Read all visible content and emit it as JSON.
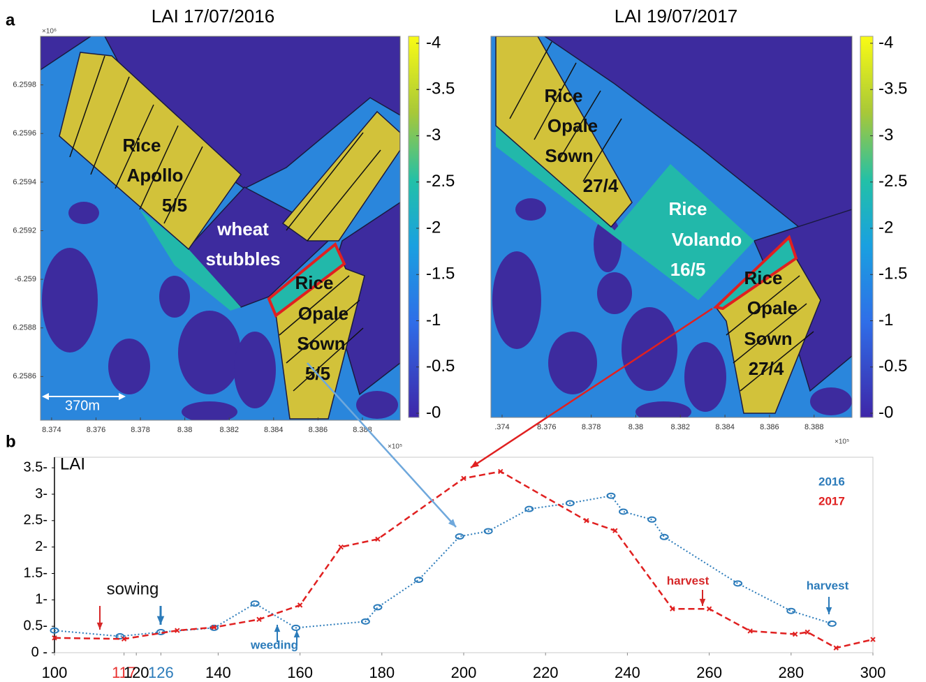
{
  "chart_data": [
    {
      "type": "map",
      "panel_label": "a",
      "title": "LAI 17/07/2016",
      "xlim": [
        8.3735,
        8.3897
      ],
      "xticks": [
        8.374,
        8.376,
        8.378,
        8.38,
        8.382,
        8.384,
        8.386,
        8.388
      ],
      "x_exponent_label": "×10⁵",
      "ylim": [
        6.25842,
        6.26
      ],
      "yticks": [
        6.2598,
        6.2596,
        6.2594,
        6.2592,
        {
          "value": 6.259,
          "label": "-6.259"
        },
        6.2588,
        6.2586
      ],
      "y_exponent_label": "×10⁶",
      "clim": [
        0,
        -4
      ],
      "cticks": [
        -4,
        -3.5,
        -3,
        -2.5,
        -2,
        -1.5,
        -1,
        -0.5,
        {
          "value": 0,
          "label": "-0"
        }
      ],
      "annotations": [
        {
          "lines": [
            "Rice",
            "Apollo",
            "5/5"
          ],
          "color": "#111111"
        },
        {
          "lines": [
            "wheat",
            "stubbles"
          ],
          "color": "#ffffff"
        },
        {
          "lines": [
            "Rice",
            "Opale",
            "Sown",
            "5/5"
          ],
          "color": "#111111"
        }
      ],
      "scale_bar_label": "370m"
    },
    {
      "type": "map",
      "title": "LAI 19/07/2017",
      "xlim": [
        8.3735,
        8.3897
      ],
      "xticks": [
        {
          "value": 8.374,
          "label": ".374"
        },
        8.376,
        8.378,
        8.38,
        8.382,
        8.384,
        8.386,
        8.388
      ],
      "x_exponent_label": "×10⁵",
      "ylim": [
        6.25842,
        6.26
      ],
      "clim": [
        0,
        -4
      ],
      "cticks": [
        -4,
        -3.5,
        -3,
        -2.5,
        -2,
        -1.5,
        -1,
        -0.5,
        {
          "value": 0,
          "label": "-0"
        }
      ],
      "annotations": [
        {
          "lines": [
            "Rice",
            "Opale",
            "Sown",
            "27/4"
          ],
          "color": "#111111"
        },
        {
          "lines": [
            "Rice",
            "Volando",
            "16/5"
          ],
          "color": "#ffffff"
        },
        {
          "lines": [
            "Rice",
            "Opale",
            "Sown",
            "27/4"
          ],
          "color": "#111111"
        }
      ]
    },
    {
      "type": "line",
      "panel_label": "b",
      "ylabel": "LAI",
      "xlim": [
        100,
        300
      ],
      "xticks": [
        100,
        {
          "value": 117,
          "label": "117",
          "color": "#e8312f"
        },
        120,
        {
          "value": 126,
          "label": "126",
          "color": "#2b7bba"
        },
        140,
        160,
        180,
        200,
        220,
        240,
        260,
        280,
        300
      ],
      "ylim": [
        0,
        3.7
      ],
      "yticks": [
        {
          "value": 0,
          "label": "0 -"
        },
        {
          "value": 0.5,
          "label": "0.5-"
        },
        {
          "value": 1,
          "label": "1-"
        },
        {
          "value": 1.5,
          "label": "1.5-"
        },
        {
          "value": 2,
          "label": "2-"
        },
        {
          "value": 2.5,
          "label": "2.5-"
        },
        {
          "value": 3,
          "label": "3-"
        },
        {
          "value": 3.5,
          "label": "3.5-"
        }
      ],
      "series": [
        {
          "name": "2016",
          "color": "#2b7bba",
          "dash": "dotted",
          "marker": "circle",
          "x": [
            100,
            116,
            126,
            139,
            149,
            159,
            176,
            179,
            189,
            199,
            206,
            216,
            226,
            236,
            239,
            246,
            249,
            267,
            280,
            290
          ],
          "values": [
            0.42,
            0.31,
            0.39,
            0.47,
            0.93,
            0.47,
            0.59,
            0.86,
            1.38,
            2.2,
            2.3,
            2.72,
            2.83,
            2.97,
            2.67,
            2.52,
            2.19,
            1.31,
            0.79,
            0.55
          ]
        },
        {
          "name": "2017",
          "color": "#e02020",
          "dash": "dashed",
          "marker": "x",
          "x": [
            100,
            117,
            130,
            139,
            150,
            160,
            170,
            179,
            200,
            209,
            230,
            237,
            251,
            260,
            270,
            281,
            284,
            291,
            300
          ],
          "values": [
            0.28,
            0.26,
            0.42,
            0.48,
            0.63,
            0.9,
            2.0,
            2.15,
            3.3,
            3.43,
            2.5,
            2.31,
            0.83,
            0.83,
            0.41,
            0.35,
            0.39,
            0.09,
            0.25
          ]
        }
      ],
      "annotations": [
        {
          "text": "sowing",
          "color": "#111111"
        },
        {
          "text": "weeding",
          "color": "#2b7bba"
        },
        {
          "text": "harvest",
          "color": "#d62728"
        },
        {
          "text": "harvest",
          "color": "#2b7bba"
        }
      ]
    }
  ]
}
